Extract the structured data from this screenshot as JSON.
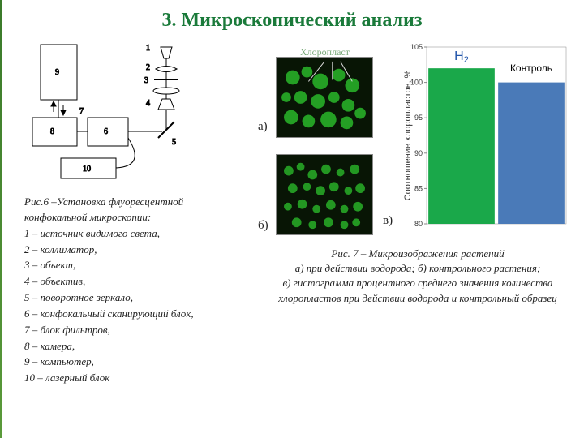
{
  "title": "3. Микроскопический анализ",
  "fig6_caption": {
    "head": "Рис.6 –Установка флуоресцентной конфокальной микроскопии:",
    "items": [
      "1 – источник видимого света,",
      "2 – коллиматор,",
      "3 – объект,",
      "4 – объектив,",
      "5 – поворотное зеркало,",
      "6 – конфокальный сканирующий блок,",
      "7 – блок фильтров,",
      "8 – камера,",
      "9 – компьютер,",
      "10 – лазерный блок"
    ]
  },
  "schematic_labels": {
    "n1": "1",
    "n2": "2",
    "n3": "3",
    "n4": "4",
    "n5": "5",
    "n6": "6",
    "n7": "7",
    "n8": "8",
    "n9": "9",
    "n10": "10"
  },
  "micro": {
    "chloroplast_label": "Хлоропласт",
    "a": "а)",
    "b": "б)",
    "v": "в)"
  },
  "fig7_caption": {
    "l1": "Рис. 7 – Микроизображения  растений",
    "l2": "а) при действии водорода; б) контрольного растения;",
    "l3": "в) гистограмма процентного среднего значения количества",
    "l4": "хлоропластов при действии водорода и контрольный образец"
  },
  "chart": {
    "type": "bar",
    "ylabel": "Соотношение хлоропластов, %",
    "ylim": [
      80,
      105
    ],
    "yticks": [
      80,
      85,
      90,
      95,
      100,
      105
    ],
    "series": [
      {
        "label": "H2",
        "label_html": "H<sub>2</sub>",
        "value": 102,
        "color": "#1aa84a"
      },
      {
        "label": "Контроль",
        "value": 100,
        "color": "#4a7ab8"
      }
    ],
    "background_color": "#ffffff",
    "tick_color": "#888",
    "text_color": "#333",
    "bar_gap": 0.05,
    "label_fontsize": 12,
    "ylabel_fontsize": 11
  },
  "colors": {
    "title": "#1a7a3a",
    "cell_green": "#2ab82a",
    "cell_dark": "#0a1a05"
  }
}
